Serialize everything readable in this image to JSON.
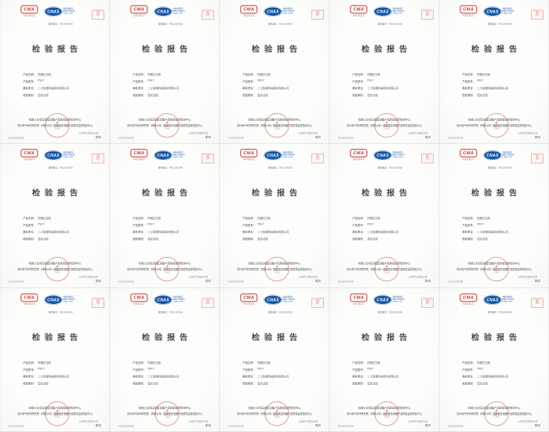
{
  "grid": {
    "columns": 5,
    "rows": 3,
    "tile_count": 15
  },
  "theme": {
    "cma_red": "#c5342c",
    "cnas_blue": "#1455a4",
    "seal_red": "#c9403a",
    "stamp_pink": "#dd9790",
    "title_color": "#3d3d3d",
    "page_bg": "#fdfdfc"
  },
  "certificate": {
    "cma": {
      "mark": "CMA",
      "subtext": "中国计量认证"
    },
    "cnas": {
      "mark": "CNAS",
      "line1": "中国合格评定",
      "line2": "国家认可委员会",
      "line3": "CNAS L1999"
    },
    "control_stamp": {
      "line1": "受控",
      "line2": "文件"
    },
    "report_no": "报告编号：PD21307269",
    "title": "检验报告",
    "fields": [
      {
        "label": "产品名称：",
        "value": "防爆正压柜"
      },
      {
        "label": "产品型号：",
        "value": "PW-T"
      },
      {
        "label": "委托单位：",
        "value": "二工防爆科技股份有限公司"
      },
      {
        "label": "检验类别：",
        "value": "型式试验"
      }
    ],
    "footer": {
      "line1": "机械工业低压成套设备产品质量监督检测中心",
      "line2": "苏州电气科学研究院（有限公司）国家低压电器产品质量监督检验中心",
      "seal_star": "★",
      "seal_line1": "检验检测",
      "seal_line2": "专用章",
      "bottom_left": "2021年07月26日",
      "bottom_right_line1": "上海市军工路1000号",
      "bottom_right_line2": "第1页"
    }
  }
}
